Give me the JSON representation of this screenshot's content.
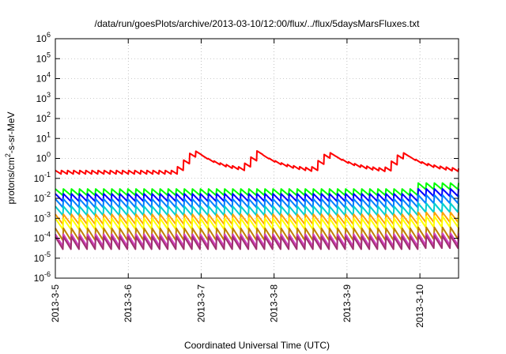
{
  "chart_data": {
    "type": "line",
    "title": "/data/run/goesPlots/archive/2013-03-10/12:00/flux/../flux/5daysMarsFluxes.txt",
    "xlabel": "Coordinated Universal Time (UTC)",
    "ylabel": {
      "base": "protons/cm",
      "sup": "2",
      "rest": "-s-sr-MeV"
    },
    "yscale": "log",
    "ylim_exp": [
      -6,
      6
    ],
    "yticks": [
      {
        "exp": "-6"
      },
      {
        "exp": "-5"
      },
      {
        "exp": "-4"
      },
      {
        "exp": "-3"
      },
      {
        "exp": "-2"
      },
      {
        "exp": "-1"
      },
      {
        "exp": "0"
      },
      {
        "exp": "1"
      },
      {
        "exp": "2"
      },
      {
        "exp": "3"
      },
      {
        "exp": "4"
      },
      {
        "exp": "5"
      },
      {
        "exp": "6"
      }
    ],
    "ytick_base": "10",
    "xlim_days": [
      0,
      5.53
    ],
    "xticks": [
      "2013-3-5",
      "2013-3-6",
      "2013-3-7",
      "2013-3-8",
      "2013-3-9",
      "2013-3-10"
    ],
    "grid": true,
    "legend": "none",
    "series": [
      {
        "color": "#ff0000",
        "log_base": -0.78,
        "amp": 0.18,
        "teeth": 12,
        "events": [
          {
            "day": 1.88,
            "peak": 0.1
          },
          {
            "day": 2.75,
            "peak": 0.02
          },
          {
            "day": 3.72,
            "peak": 0.02
          },
          {
            "day": 4.73,
            "peak": 0.0
          }
        ]
      },
      {
        "color": "#00ff00",
        "log_base": -1.85,
        "amp": 0.32,
        "teeth": 9,
        "jump_day": 4.9,
        "jump": 0.3
      },
      {
        "color": "#0000ff",
        "log_base": -2.15,
        "amp": 0.38,
        "teeth": 9,
        "jump_day": 4.9,
        "jump": 0.25
      },
      {
        "color": "#0080ff",
        "log_base": -2.45,
        "amp": 0.42,
        "teeth": 9,
        "jump_day": 4.9,
        "jump": 0.2
      },
      {
        "color": "#00d0d0",
        "log_base": -2.85,
        "amp": 0.45,
        "teeth": 9,
        "jump_day": 4.9,
        "jump": 0.15
      },
      {
        "color": "#ffa000",
        "log_base": -3.3,
        "amp": 0.5,
        "teeth": 9,
        "jump_day": 4.9,
        "jump": 0.1
      },
      {
        "color": "#ffff00",
        "log_base": -3.55,
        "amp": 0.55,
        "teeth": 9,
        "jump_day": 4.9,
        "jump": 0.1
      },
      {
        "color": "#c08000",
        "log_base": -4.1,
        "amp": 0.6,
        "teeth": 9,
        "jump_day": 4.9,
        "jump": 0.05
      },
      {
        "color": "#d040c0",
        "log_base": -4.4,
        "amp": 0.6,
        "teeth": 9,
        "jump_day": 4.9,
        "jump": 0.05
      },
      {
        "color": "#a03070",
        "log_base": -4.55,
        "amp": 0.62,
        "teeth": 9,
        "jump_day": 4.9,
        "jump": 0.05
      }
    ]
  }
}
